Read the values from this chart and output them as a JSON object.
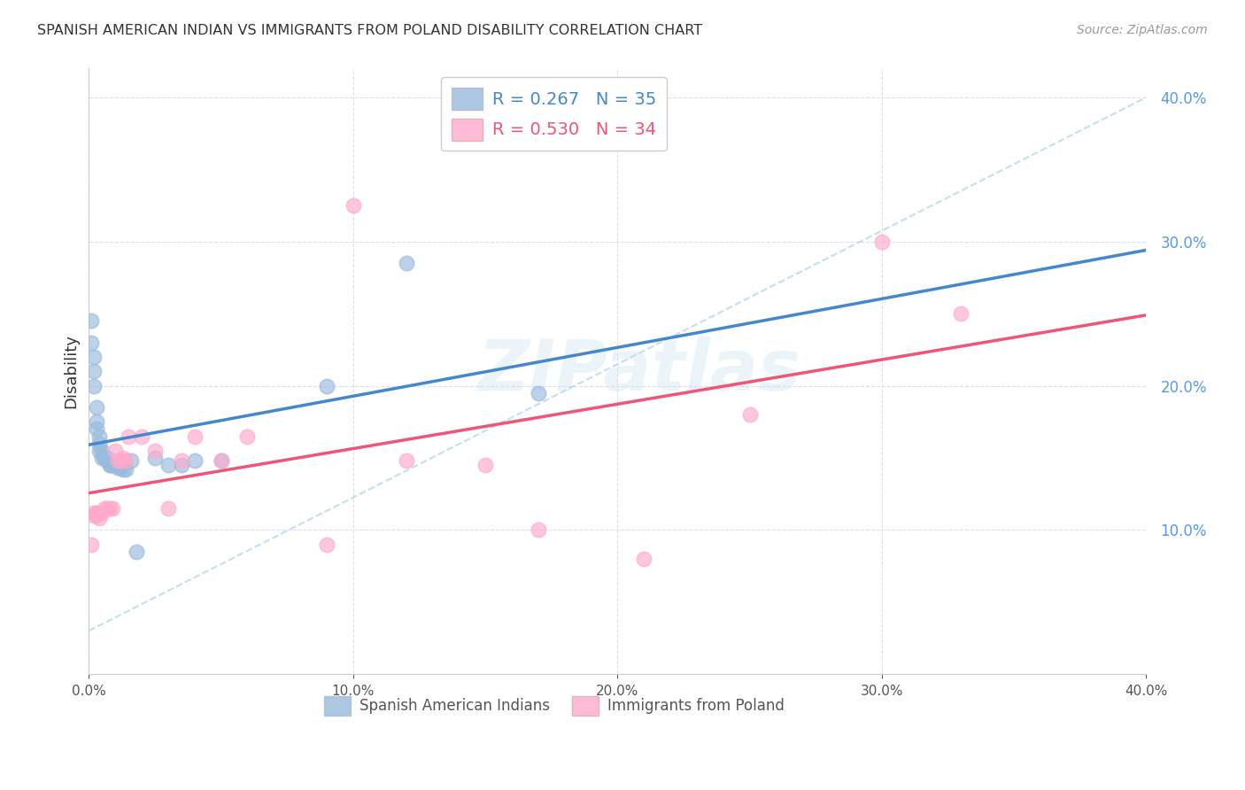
{
  "title": "SPANISH AMERICAN INDIAN VS IMMIGRANTS FROM POLAND DISABILITY CORRELATION CHART",
  "source": "Source: ZipAtlas.com",
  "ylabel": "Disability",
  "xlim": [
    0.0,
    0.4
  ],
  "ylim": [
    0.0,
    0.42
  ],
  "watermark": "ZIPatlas",
  "legend": {
    "blue_r": "R = 0.267",
    "blue_n": "N = 35",
    "pink_r": "R = 0.530",
    "pink_n": "N = 34",
    "label_blue": "Spanish American Indians",
    "label_pink": "Immigrants from Poland"
  },
  "blue_x": [
    0.001,
    0.001,
    0.002,
    0.002,
    0.002,
    0.003,
    0.003,
    0.003,
    0.004,
    0.004,
    0.004,
    0.005,
    0.005,
    0.006,
    0.006,
    0.007,
    0.007,
    0.008,
    0.008,
    0.009,
    0.01,
    0.011,
    0.012,
    0.013,
    0.014,
    0.016,
    0.018,
    0.025,
    0.03,
    0.035,
    0.04,
    0.05,
    0.09,
    0.12,
    0.17
  ],
  "blue_y": [
    0.245,
    0.23,
    0.22,
    0.21,
    0.2,
    0.185,
    0.175,
    0.17,
    0.165,
    0.16,
    0.155,
    0.155,
    0.15,
    0.15,
    0.15,
    0.15,
    0.148,
    0.145,
    0.145,
    0.145,
    0.145,
    0.143,
    0.143,
    0.142,
    0.142,
    0.148,
    0.085,
    0.15,
    0.145,
    0.145,
    0.148,
    0.148,
    0.2,
    0.285,
    0.195
  ],
  "pink_x": [
    0.001,
    0.002,
    0.002,
    0.003,
    0.003,
    0.004,
    0.004,
    0.005,
    0.006,
    0.007,
    0.008,
    0.009,
    0.01,
    0.011,
    0.012,
    0.013,
    0.014,
    0.015,
    0.02,
    0.025,
    0.03,
    0.035,
    0.04,
    0.05,
    0.06,
    0.09,
    0.1,
    0.12,
    0.15,
    0.17,
    0.21,
    0.25,
    0.3,
    0.33
  ],
  "pink_y": [
    0.09,
    0.11,
    0.112,
    0.11,
    0.112,
    0.108,
    0.112,
    0.112,
    0.115,
    0.115,
    0.115,
    0.115,
    0.155,
    0.148,
    0.148,
    0.15,
    0.148,
    0.165,
    0.165,
    0.155,
    0.115,
    0.148,
    0.165,
    0.148,
    0.165,
    0.09,
    0.325,
    0.148,
    0.145,
    0.1,
    0.08,
    0.18,
    0.3,
    0.25
  ],
  "blue_color": "#99BBDD",
  "pink_color": "#FFAACC",
  "blue_line_color": "#4488CC",
  "pink_line_color": "#EE5577",
  "dashed_line_color": "#BBDDEE",
  "background_color": "#FFFFFF",
  "grid_color": "#DDDDEE"
}
